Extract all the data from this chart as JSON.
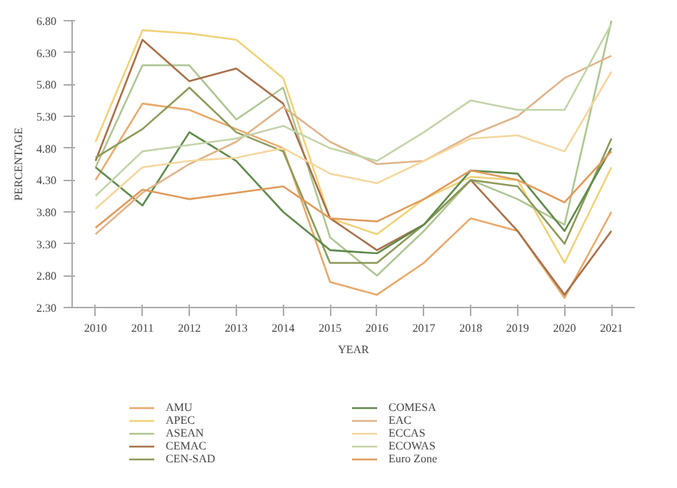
{
  "chart_data": {
    "type": "line",
    "xlabel": "YEAR",
    "ylabel": "PERCENTAGE",
    "x": [
      2010,
      2011,
      2012,
      2013,
      2014,
      2015,
      2016,
      2017,
      2018,
      2019,
      2020,
      2021
    ],
    "xlim": [
      2009.5,
      2021.5
    ],
    "xticks": [
      2010,
      2011,
      2012,
      2013,
      2014,
      2015,
      2016,
      2017,
      2018,
      2019,
      2020,
      2021
    ],
    "ylim": [
      2.3,
      6.8
    ],
    "yticks": [
      {
        "value": 2.3,
        "label": "2.30"
      },
      {
        "value": 2.8,
        "label": "2.80"
      },
      {
        "value": 3.3,
        "label": "3.30"
      },
      {
        "value": 3.8,
        "label": "3.80"
      },
      {
        "value": 4.3,
        "label": "4.30"
      },
      {
        "value": 4.8,
        "label": "4.80"
      },
      {
        "value": 5.3,
        "label": "5.30"
      },
      {
        "value": 5.8,
        "label": "5.80"
      },
      {
        "value": 6.3,
        "label": "6.30"
      },
      {
        "value": 6.8,
        "label": "6.80"
      }
    ],
    "grid": false,
    "legend": "bottom",
    "marker": "none",
    "line_style": "solid",
    "series": [
      {
        "name": "AMU",
        "color": "#e8a96b",
        "values": [
          4.3,
          5.5,
          5.4,
          5.1,
          4.8,
          2.7,
          2.5,
          3.0,
          3.7,
          3.5,
          2.45,
          3.8
        ]
      },
      {
        "name": "APEC",
        "color": "#f0d27a",
        "values": [
          4.9,
          6.65,
          6.6,
          6.5,
          5.9,
          3.7,
          3.45,
          4.0,
          4.35,
          4.3,
          3.0,
          4.5
        ]
      },
      {
        "name": "ASEAN",
        "color": "#aec592",
        "values": [
          4.5,
          6.1,
          6.1,
          5.25,
          5.75,
          3.4,
          2.8,
          3.5,
          4.3,
          4.0,
          3.6,
          6.8
        ]
      },
      {
        "name": "CEMAC",
        "color": "#a8704a",
        "values": [
          4.6,
          6.5,
          5.85,
          6.05,
          5.5,
          3.7,
          3.2,
          3.6,
          4.3,
          3.5,
          2.5,
          3.5
        ]
      },
      {
        "name": "CEN-SAD",
        "color": "#8c9a5a",
        "values": [
          4.65,
          5.1,
          5.75,
          5.05,
          4.75,
          3.0,
          3.0,
          3.6,
          4.3,
          4.2,
          3.3,
          4.95
        ]
      },
      {
        "name": "COMESA",
        "color": "#5f8a4a",
        "values": [
          4.5,
          3.9,
          5.05,
          4.6,
          3.8,
          3.2,
          3.15,
          3.6,
          4.45,
          4.4,
          3.5,
          4.8
        ]
      },
      {
        "name": "EAC",
        "color": "#e0b48a",
        "values": [
          3.45,
          4.1,
          4.55,
          4.9,
          5.45,
          4.9,
          4.55,
          4.6,
          5.0,
          5.3,
          5.9,
          6.25
        ]
      },
      {
        "name": "ECCAS",
        "color": "#f5d69c",
        "values": [
          3.85,
          4.5,
          4.6,
          4.65,
          4.8,
          4.4,
          4.25,
          4.6,
          4.95,
          5.0,
          4.75,
          6.0
        ]
      },
      {
        "name": "ECOWAS",
        "color": "#c2d4a8",
        "values": [
          4.05,
          4.75,
          4.85,
          4.95,
          5.15,
          4.8,
          4.6,
          5.05,
          5.55,
          5.4,
          5.4,
          6.75
        ]
      },
      {
        "name": "Euro Zone",
        "color": "#e09a5a",
        "values": [
          3.55,
          4.15,
          4.0,
          4.1,
          4.2,
          3.7,
          3.65,
          4.0,
          4.45,
          4.3,
          3.95,
          4.75
        ]
      }
    ]
  }
}
